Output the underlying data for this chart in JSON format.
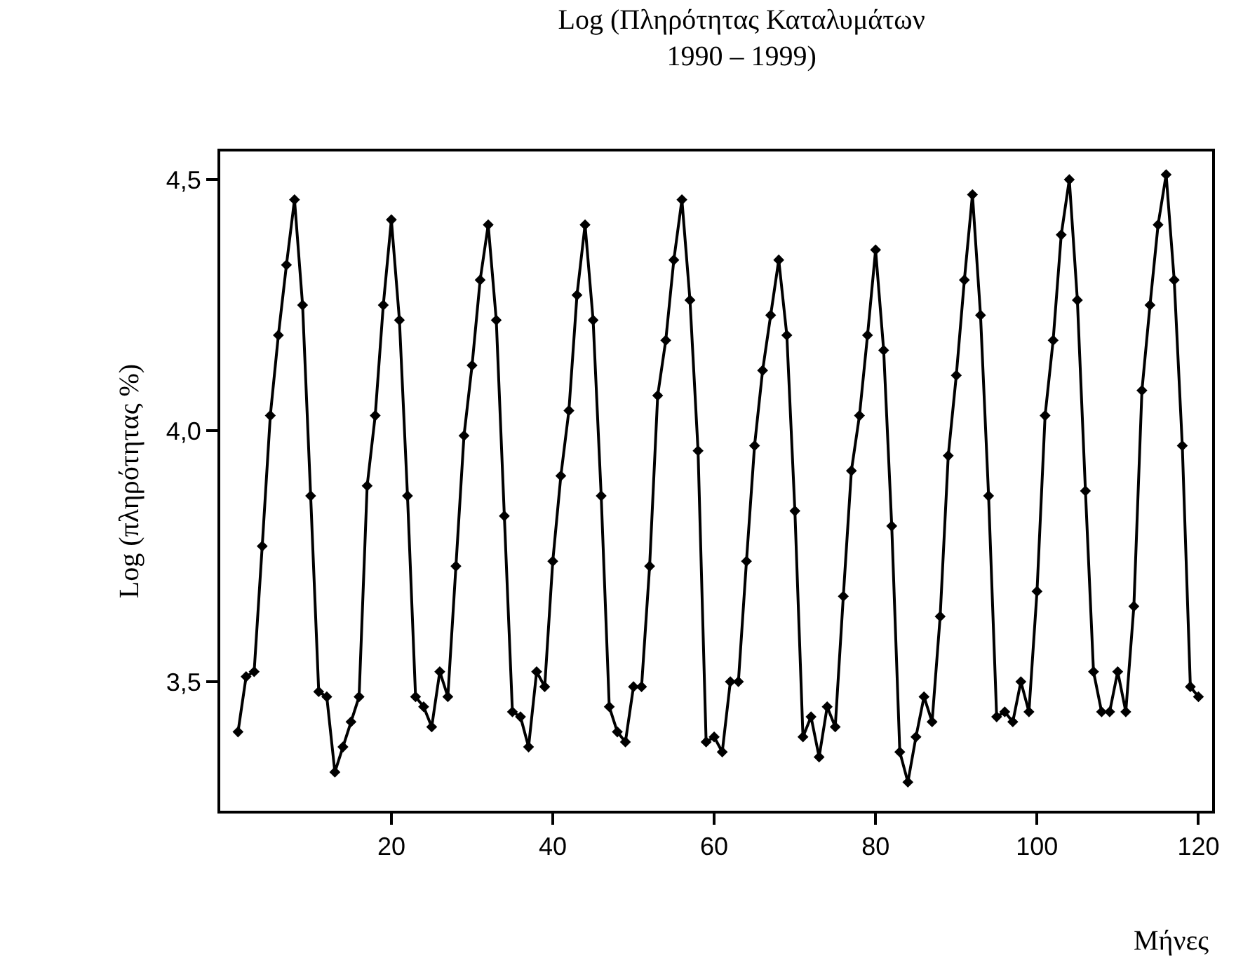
{
  "chart_data": {
    "type": "line",
    "title": "Log (Πληρότητας Καταλυμάτων\n1990 – 1999)",
    "xlabel": "Μήνες",
    "ylabel": "Log (πληρότητας %)",
    "x": [
      1,
      2,
      3,
      4,
      5,
      6,
      7,
      8,
      9,
      10,
      11,
      12,
      13,
      14,
      15,
      16,
      17,
      18,
      19,
      20,
      21,
      22,
      23,
      24,
      25,
      26,
      27,
      28,
      29,
      30,
      31,
      32,
      33,
      34,
      35,
      36,
      37,
      38,
      39,
      40,
      41,
      42,
      43,
      44,
      45,
      46,
      47,
      48,
      49,
      50,
      51,
      52,
      53,
      54,
      55,
      56,
      57,
      58,
      59,
      60,
      61,
      62,
      63,
      64,
      65,
      66,
      67,
      68,
      69,
      70,
      71,
      72,
      73,
      74,
      75,
      76,
      77,
      78,
      79,
      80,
      81,
      82,
      83,
      84,
      85,
      86,
      87,
      88,
      89,
      90,
      91,
      92,
      93,
      94,
      95,
      96,
      97,
      98,
      99,
      100,
      101,
      102,
      103,
      104,
      105,
      106,
      107,
      108,
      109,
      110,
      111,
      112,
      113,
      114,
      115,
      116,
      117,
      118,
      119,
      120
    ],
    "series": [
      {
        "color": "#000000",
        "values": [
          3.4,
          3.51,
          3.52,
          3.77,
          4.03,
          4.19,
          4.33,
          4.46,
          4.25,
          3.87,
          3.48,
          3.47,
          3.32,
          3.37,
          3.42,
          3.47,
          3.89,
          4.03,
          4.25,
          4.42,
          4.22,
          3.87,
          3.47,
          3.45,
          3.41,
          3.52,
          3.47,
          3.73,
          3.99,
          4.13,
          4.3,
          4.41,
          4.22,
          3.83,
          3.44,
          3.43,
          3.37,
          3.52,
          3.49,
          3.74,
          3.91,
          4.04,
          4.27,
          4.41,
          4.22,
          3.87,
          3.45,
          3.4,
          3.38,
          3.49,
          3.49,
          3.73,
          4.07,
          4.18,
          4.34,
          4.46,
          4.26,
          3.96,
          3.38,
          3.39,
          3.36,
          3.5,
          3.5,
          3.74,
          3.97,
          4.12,
          4.23,
          4.34,
          4.19,
          3.84,
          3.39,
          3.43,
          3.35,
          3.45,
          3.41,
          3.67,
          3.92,
          4.03,
          4.19,
          4.36,
          4.16,
          3.81,
          3.36,
          3.3,
          3.39,
          3.47,
          3.42,
          3.63,
          3.95,
          4.11,
          4.3,
          4.47,
          4.23,
          3.87,
          3.43,
          3.44,
          3.42,
          3.5,
          3.44,
          3.68,
          4.03,
          4.18,
          4.39,
          4.5,
          4.26,
          3.88,
          3.52,
          3.44,
          3.44,
          3.52,
          3.44,
          3.65,
          4.08,
          4.25,
          4.41,
          4.51,
          4.3,
          3.97,
          3.49,
          3.47
        ]
      }
    ],
    "xlim": [
      -1.2,
      121.7
    ],
    "xticks": [
      20,
      40,
      60,
      80,
      100,
      120
    ],
    "ylim": [
      3.243,
      4.556
    ],
    "yticks": [
      {
        "value": 3.5,
        "label": "3,5"
      },
      {
        "value": 4.0,
        "label": "4,0"
      },
      {
        "value": 4.5,
        "label": "4,5"
      }
    ],
    "marker": "diamond",
    "line_style": "solid"
  }
}
